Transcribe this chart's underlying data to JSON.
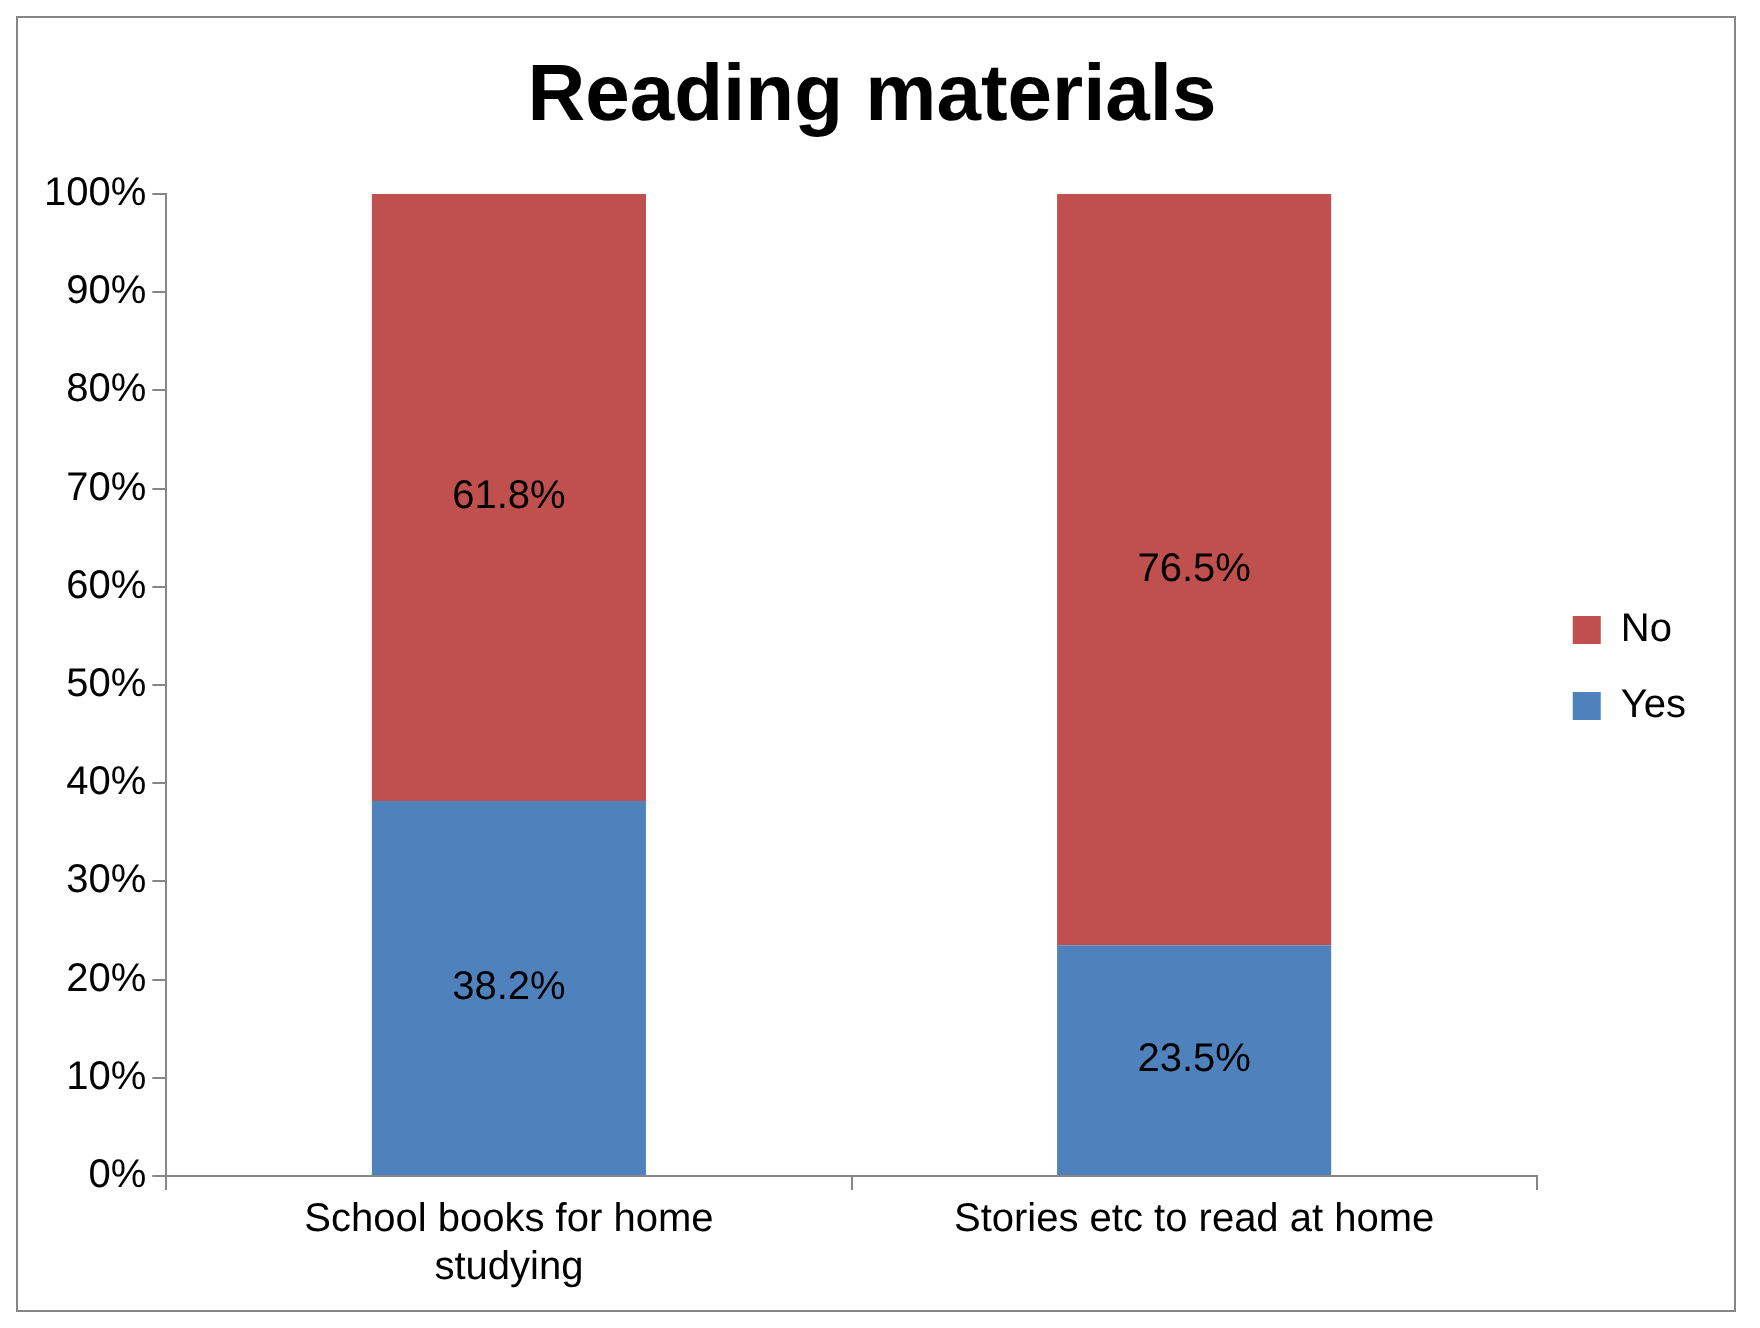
{
  "chart_data": {
    "type": "bar",
    "title": "Reading materials",
    "categories": [
      "School books for home studying",
      "Stories etc to read at home"
    ],
    "stacked": true,
    "series": [
      {
        "name": "Yes",
        "color": "#4f81bd",
        "values": [
          38.2,
          23.5
        ],
        "value_labels": [
          "38.2%",
          "23.5%"
        ]
      },
      {
        "name": "No",
        "color": "#c0504d",
        "values": [
          61.8,
          76.5
        ],
        "value_labels": [
          "61.8%",
          "76.5%"
        ]
      }
    ],
    "ylim": [
      0,
      100
    ],
    "yticks": [
      {
        "value": 0,
        "label": "0%"
      },
      {
        "value": 10,
        "label": "10%"
      },
      {
        "value": 20,
        "label": "20%"
      },
      {
        "value": 30,
        "label": "30%"
      },
      {
        "value": 40,
        "label": "40%"
      },
      {
        "value": 50,
        "label": "50%"
      },
      {
        "value": 60,
        "label": "60%"
      },
      {
        "value": 70,
        "label": "70%"
      },
      {
        "value": 80,
        "label": "80%"
      },
      {
        "value": 90,
        "label": "90%"
      },
      {
        "value": 100,
        "label": "100%"
      }
    ],
    "grid": false,
    "legend": "right"
  }
}
